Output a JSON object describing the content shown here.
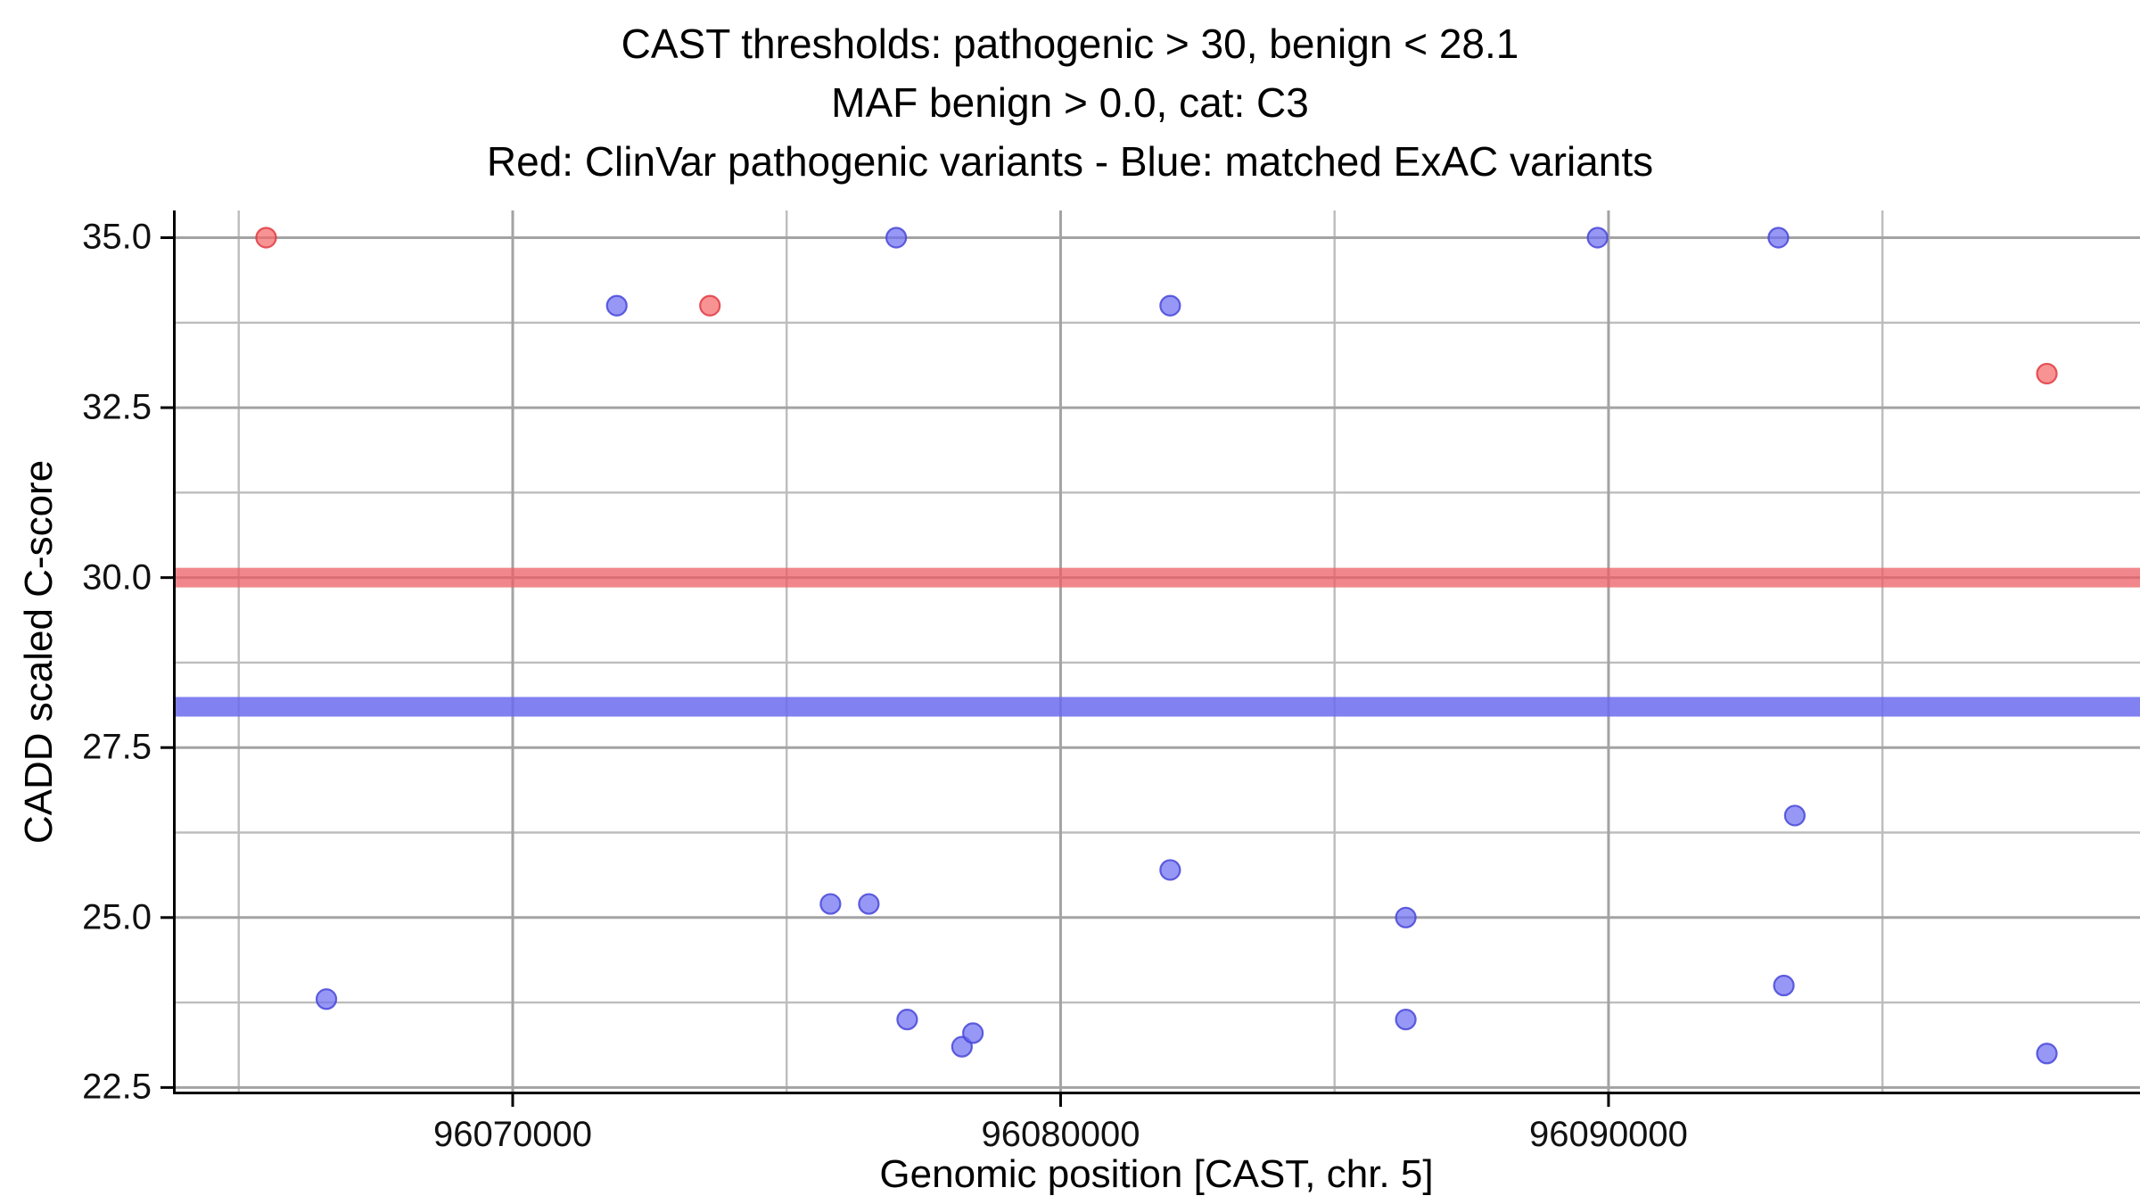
{
  "title": {
    "line1": "CAST thresholds: pathogenic > 30, benign < 28.1",
    "line2": "MAF benign > 0.0, cat: C3",
    "line3": "Red: ClinVar pathogenic variants - Blue: matched ExAC variants"
  },
  "chart_data": {
    "type": "scatter",
    "title": "CAST thresholds: pathogenic > 30, benign < 28.1\nMAF benign > 0.0, cat: C3\nRed: ClinVar pathogenic variants - Blue: matched ExAC variants",
    "xlabel": "Genomic position [CAST, chr. 5]",
    "ylabel": "CADD scaled C-score",
    "xlim": [
      96063800,
      96099700
    ],
    "ylim": [
      22.4,
      35.4
    ],
    "grid": true,
    "legend_position": "none",
    "x_ticks": [
      96070000,
      96080000,
      96090000
    ],
    "x_tick_labels": [
      "96070000",
      "96080000",
      "96090000"
    ],
    "y_ticks": [
      35.0,
      32.5,
      30.0,
      27.5,
      25.0,
      22.5
    ],
    "y_tick_labels": [
      "35.0",
      "32.5",
      "30.0",
      "27.5",
      "25.0",
      "22.5"
    ],
    "x_minor_ticks": [
      96065000,
      96075000,
      96085000,
      96095000
    ],
    "y_minor_ticks": [
      33.75,
      31.25,
      28.75,
      26.25,
      23.75
    ],
    "grid_major_color": "#a3a3a3",
    "grid_minor_color": "#bdbdbd",
    "thresholds": [
      {
        "name": "pathogenic-threshold",
        "label": "pathogenic > 30",
        "value": 30.0,
        "color": "#ec5f66",
        "opacity": 0.75
      },
      {
        "name": "benign-threshold",
        "label": "benign < 28.1",
        "value": 28.1,
        "color": "#6b6bf0",
        "opacity": 0.85
      }
    ],
    "series": [
      {
        "name": "matched ExAC variants",
        "color": "#6f6ff2",
        "stroke": "#4646d8",
        "points": [
          [
            96066600,
            23.8
          ],
          [
            96071900,
            34.0
          ],
          [
            96075800,
            25.2
          ],
          [
            96076500,
            25.2
          ],
          [
            96077000,
            35.0
          ],
          [
            96077200,
            23.5
          ],
          [
            96078200,
            23.1
          ],
          [
            96078400,
            23.3
          ],
          [
            96082000,
            34.0
          ],
          [
            96082000,
            25.7
          ],
          [
            96086300,
            25.0
          ],
          [
            96086300,
            23.5
          ],
          [
            96089800,
            35.0
          ],
          [
            96093100,
            35.0
          ],
          [
            96093200,
            24.0
          ],
          [
            96093400,
            26.5
          ],
          [
            96098000,
            23.0
          ]
        ]
      },
      {
        "name": "ClinVar pathogenic variants",
        "color": "#f56a6a",
        "stroke": "#e03b43",
        "points": [
          [
            96065500,
            35.0
          ],
          [
            96073600,
            34.0
          ],
          [
            96098000,
            33.0
          ]
        ]
      }
    ]
  }
}
